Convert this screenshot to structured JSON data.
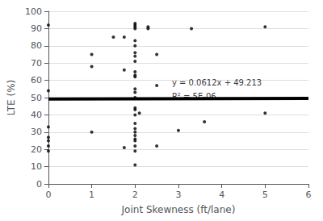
{
  "chart_data": {
    "type": "scatter",
    "xlabel": "Joint Skewness (ft/lane)",
    "ylabel": "LTE (%)",
    "xlim": [
      0,
      6
    ],
    "ylim": [
      0,
      100
    ],
    "xticks": [
      0,
      1,
      2,
      3,
      4,
      5,
      6
    ],
    "yticks": [
      0,
      10,
      20,
      30,
      40,
      50,
      60,
      70,
      80,
      90,
      100
    ],
    "grid": true,
    "series": [
      {
        "type": "scatter",
        "color": "#000000",
        "x": [
          0.0,
          0.0,
          0.0,
          0.0,
          0.0,
          0.0,
          0.0,
          1.0,
          1.0,
          1.0,
          1.5,
          1.75,
          1.75,
          1.75,
          2.0,
          2.0,
          2.0,
          2.0,
          2.0,
          2.0,
          2.0,
          2.0,
          2.0,
          2.0,
          2.0,
          2.0,
          2.0,
          2.0,
          2.0,
          2.0,
          2.0,
          2.0,
          2.0,
          2.0,
          2.0,
          2.0,
          2.0,
          2.0,
          2.0,
          2.0,
          2.0,
          2.1,
          2.3,
          2.3,
          2.5,
          2.5,
          2.5,
          3.0,
          3.3,
          3.6,
          5.0,
          5.0
        ],
        "values": [
          92,
          54,
          33,
          27,
          25,
          22,
          19,
          75,
          68,
          30,
          85,
          85,
          66,
          21,
          93,
          92,
          91,
          90,
          83,
          80,
          76,
          74,
          71,
          65,
          63,
          62,
          55,
          53,
          50,
          44,
          43,
          40,
          35,
          32,
          30,
          28,
          26,
          25,
          22,
          19,
          11,
          41,
          91,
          90,
          75,
          57,
          22,
          31,
          90,
          36,
          91,
          41
        ]
      },
      {
        "type": "line",
        "color": "#000000",
        "x": [
          0,
          6
        ],
        "values": [
          49.213,
          49.5802
        ]
      }
    ],
    "annotations": [
      {
        "text": "y = 0.0612x + 49.213",
        "x": 2.85,
        "y": 56.5
      },
      {
        "text": "R² = 5E-06",
        "x": 2.85,
        "y": 53.0
      }
    ]
  }
}
